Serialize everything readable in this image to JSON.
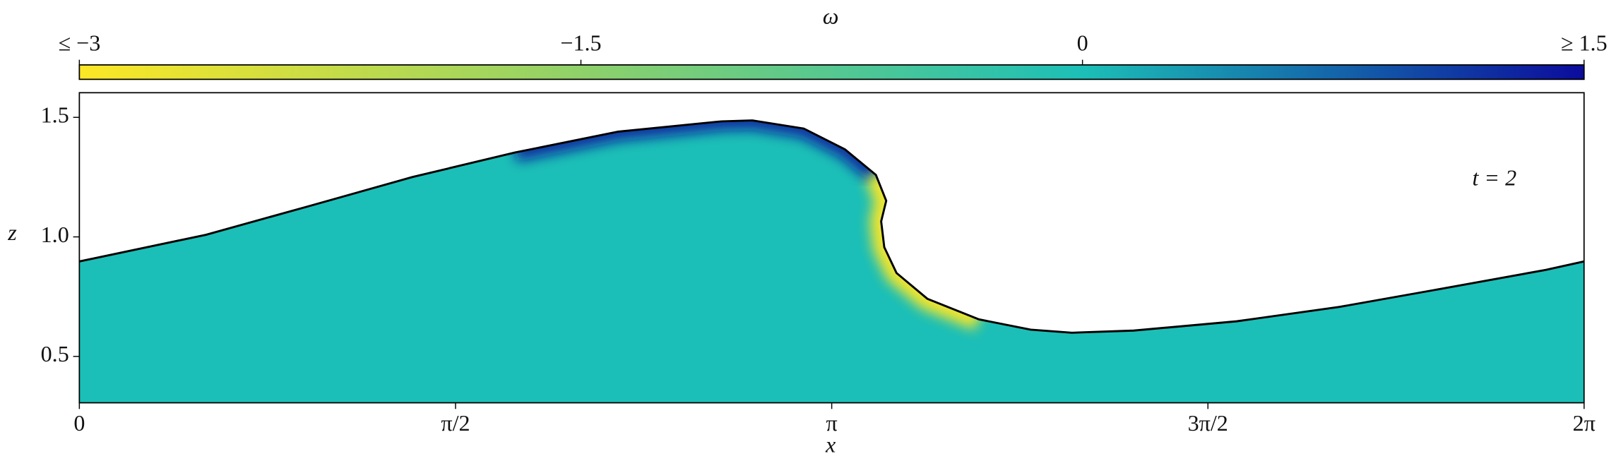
{
  "chart_data": {
    "type": "area",
    "x": [
      0,
      0.529,
      0.96,
      1.39,
      1.82,
      2.25,
      2.681,
      2.81,
      3.025,
      3.197,
      3.326,
      3.369,
      3.348,
      3.361,
      3.412,
      3.541,
      3.756,
      3.972,
      4.144,
      4.402,
      4.832,
      5.262,
      5.693,
      6.123,
      6.283
    ],
    "values": [
      0.897,
      1.009,
      1.129,
      1.25,
      1.353,
      1.44,
      1.483,
      1.487,
      1.453,
      1.366,
      1.259,
      1.151,
      1.065,
      0.957,
      0.849,
      0.741,
      0.655,
      0.612,
      0.599,
      0.608,
      0.647,
      0.707,
      0.784,
      0.862,
      0.897
    ],
    "color": "#1cbfb7",
    "line_color": "#000000",
    "xlabel": "x",
    "ylabel": "z",
    "annotation": "t = 2",
    "xlim": [
      0,
      6.283
    ],
    "xticks": [
      0,
      {
        "value": 1.5708,
        "label": "π/2"
      },
      {
        "value": 3.1416,
        "label": "π"
      },
      {
        "value": 4.7124,
        "label": "3π/2"
      },
      {
        "value": 6.2832,
        "label": "2π"
      }
    ],
    "ylim": [
      0.306,
      1.603
    ],
    "yticks": [
      0.5,
      {
        "value": 1.0,
        "label": "1.0"
      },
      1.5
    ],
    "colorbar": {
      "label": "ω",
      "lim": [
        -3,
        1.5
      ],
      "ticks": [
        {
          "value": -3,
          "label": "≤ −3"
        },
        {
          "value": -1.5,
          "label": "−1.5"
        },
        0,
        {
          "value": 1.5,
          "label": "≥ 1.5"
        }
      ],
      "colors": [
        "#fde725",
        "#8fd16a",
        "#1cbfb7",
        "#0c0c9c"
      ]
    }
  }
}
